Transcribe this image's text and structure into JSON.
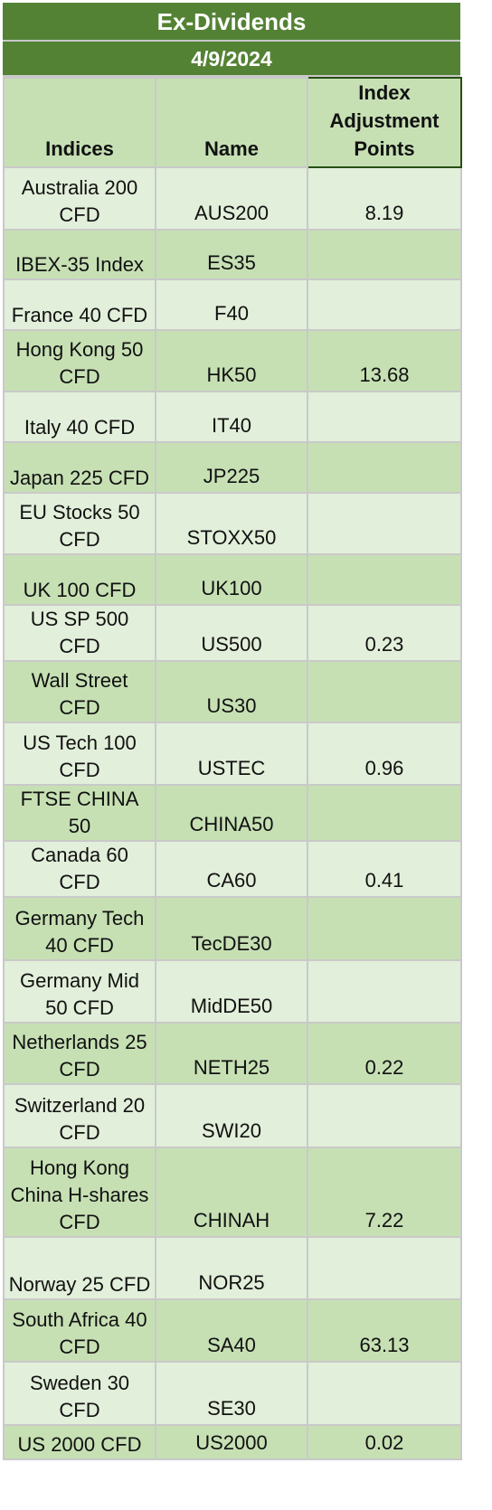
{
  "title": "Ex-Dividends",
  "date": "4/9/2024",
  "headers": {
    "indices": "Indices",
    "name": "Name",
    "adjustment": "Index Adjustment Points"
  },
  "rows": [
    {
      "index": "Australia 200 CFD",
      "name": "AUS200",
      "points": "8.19"
    },
    {
      "index": "IBEX-35 Index",
      "name": "ES35",
      "points": ""
    },
    {
      "index": "France 40 CFD",
      "name": "F40",
      "points": ""
    },
    {
      "index": "Hong Kong 50 CFD",
      "name": "HK50",
      "points": "13.68"
    },
    {
      "index": "Italy 40 CFD",
      "name": "IT40",
      "points": ""
    },
    {
      "index": "Japan 225 CFD",
      "name": "JP225",
      "points": ""
    },
    {
      "index": "EU Stocks 50 CFD",
      "name": "STOXX50",
      "points": ""
    },
    {
      "index": "UK 100 CFD",
      "name": "UK100",
      "points": ""
    },
    {
      "index": "US SP 500 CFD",
      "name": "US500",
      "points": "0.23"
    },
    {
      "index": "Wall Street CFD",
      "name": "US30",
      "points": ""
    },
    {
      "index": "US Tech 100 CFD",
      "name": "USTEC",
      "points": "0.96"
    },
    {
      "index": "FTSE CHINA 50",
      "name": "CHINA50",
      "points": ""
    },
    {
      "index": "Canada 60 CFD",
      "name": "CA60",
      "points": "0.41"
    },
    {
      "index": "Germany Tech 40 CFD",
      "name": "TecDE30",
      "points": ""
    },
    {
      "index": "Germany Mid 50 CFD",
      "name": "MidDE50",
      "points": ""
    },
    {
      "index": "Netherlands 25 CFD",
      "name": "NETH25",
      "points": "0.22"
    },
    {
      "index": "Switzerland 20 CFD",
      "name": "SWI20",
      "points": ""
    },
    {
      "index": "Hong Kong China H-shares CFD",
      "name": "CHINAH",
      "points": "7.22"
    },
    {
      "index": "Norway 25 CFD",
      "name": "NOR25",
      "points": ""
    },
    {
      "index": "South Africa 40 CFD",
      "name": "SA40",
      "points": "63.13"
    },
    {
      "index": "Sweden 30 CFD",
      "name": "SE30",
      "points": ""
    },
    {
      "index": "US 2000 CFD",
      "name": "US2000",
      "points": "0.02"
    }
  ]
}
